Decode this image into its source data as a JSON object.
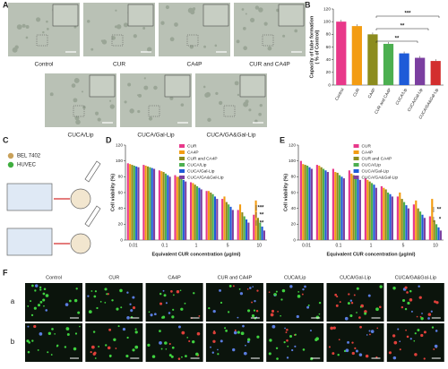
{
  "panel_labels": [
    "A",
    "B",
    "C",
    "D",
    "E",
    "F"
  ],
  "panel_a": {
    "labels": [
      "Control",
      "CUR",
      "CA4P",
      "CUR and CA4P",
      "CUCA/Lip",
      "CUCA/Gal-Lip",
      "CUCA/GA&Gal-Lip"
    ]
  },
  "panel_c": {
    "legend": [
      "BEL 7402",
      "HUVEC"
    ]
  },
  "panel_f": {
    "columns": [
      "Control",
      "CUR",
      "CA4P",
      "CUR and CA4P",
      "CUCA/Lip",
      "CUCA/Gal-Lip",
      "CUCA/GA&Gal-Lip"
    ],
    "rows": [
      "a",
      "b"
    ]
  },
  "chart_data": [
    {
      "type": "bar",
      "ylabel": [
        "Capacity of tube formation",
        "( % of Control)"
      ],
      "categories": [
        "Control",
        "CUR",
        "CA4P",
        "CUR and CA4P",
        "CUCA/Lip",
        "CUCA/Gal-Lip",
        "CUCA/GA&Gal-Lip"
      ],
      "values": [
        100,
        93,
        80,
        65,
        50,
        43,
        38
      ],
      "colors": [
        "#e8388a",
        "#f39c12",
        "#8c8c1e",
        "#4caf50",
        "#1e5bd8",
        "#7b3fa0",
        "#d32f2f"
      ],
      "ylim": [
        0,
        120
      ],
      "yticks": [
        0,
        20,
        40,
        60,
        80,
        100,
        120
      ],
      "annotations": [
        "***",
        "**",
        "**"
      ]
    },
    {
      "type": "grouped_bar",
      "ylabel": [
        "Cell viability (%)"
      ],
      "xlabel": "Equivalent CUR concentration (μg/ml)",
      "categories": [
        "0.01",
        null,
        "0.1",
        null,
        "1",
        null,
        "5",
        null,
        "10"
      ],
      "series": [
        {
          "name": "CUR",
          "color": "#e8388a",
          "values": [
            97,
            95,
            88,
            82,
            73,
            62,
            52,
            38,
            32
          ]
        },
        {
          "name": "CA4P",
          "color": "#f39c12",
          "values": [
            96,
            94,
            87,
            80,
            72,
            62,
            55,
            45,
            50
          ]
        },
        {
          "name": "CUR and CA4P",
          "color": "#8c8c1e",
          "values": [
            95,
            93,
            86,
            80,
            70,
            60,
            48,
            35,
            28
          ]
        },
        {
          "name": "CUCA/Lip",
          "color": "#4caf50",
          "values": [
            94,
            92,
            84,
            78,
            68,
            58,
            45,
            30,
            22
          ]
        },
        {
          "name": "CUCA/Gal-Lip",
          "color": "#1e5bd8",
          "values": [
            93,
            91,
            82,
            76,
            66,
            55,
            42,
            26,
            17
          ]
        },
        {
          "name": "CUCA/GA&Gal-Lip",
          "color": "#7b3fa0",
          "values": [
            92,
            90,
            80,
            74,
            64,
            52,
            38,
            22,
            12
          ]
        }
      ],
      "ylim": [
        0,
        120
      ],
      "yticks": [
        0,
        20,
        40,
        60,
        80,
        100,
        120
      ],
      "annotations": [
        "***",
        "**",
        "**"
      ]
    },
    {
      "type": "grouped_bar",
      "ylabel": [
        "Cell viability (%)"
      ],
      "xlabel": "Equivalent CUR concentration (μg/ml)",
      "categories": [
        "0.01",
        null,
        "0.1",
        null,
        "1",
        null,
        "5",
        null,
        "10"
      ],
      "series": [
        {
          "name": "CUR",
          "color": "#e8388a",
          "values": [
            100,
            95,
            90,
            88,
            78,
            68,
            55,
            45,
            30
          ]
        },
        {
          "name": "CA4P",
          "color": "#f39c12",
          "values": [
            96,
            94,
            86,
            84,
            76,
            66,
            60,
            50,
            52
          ]
        },
        {
          "name": "CUR and CA4P",
          "color": "#8c8c1e",
          "values": [
            95,
            92,
            85,
            82,
            74,
            64,
            52,
            40,
            25
          ]
        },
        {
          "name": "CUCA/Lip",
          "color": "#4caf50",
          "values": [
            94,
            90,
            82,
            80,
            72,
            60,
            48,
            36,
            20
          ]
        },
        {
          "name": "CUCA/Gal-Lip",
          "color": "#1e5bd8",
          "values": [
            92,
            88,
            80,
            78,
            70,
            58,
            44,
            32,
            16
          ]
        },
        {
          "name": "CUCA/GA&Gal-Lip",
          "color": "#7b3fa0",
          "values": [
            90,
            86,
            78,
            76,
            66,
            55,
            40,
            28,
            12
          ]
        }
      ],
      "ylim": [
        0,
        120
      ],
      "yticks": [
        0,
        20,
        40,
        60,
        80,
        100,
        120
      ],
      "annotations": [
        "**",
        "*"
      ]
    }
  ]
}
